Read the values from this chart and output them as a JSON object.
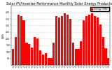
{
  "title": "Solar PV/Inverter Performance Monthly Solar Energy Production",
  "ylabel": "kWh",
  "bar_color": "#ff0000",
  "bg_color": "#ffffff",
  "plot_bg": "#ffffff",
  "grid_color": "#aaaaaa",
  "categories": [
    "Jan\n'08",
    "Feb\n'08",
    "Mar\n'08",
    "Apr\n'08",
    "May\n'08",
    "Jun\n'08",
    "Jul\n'08",
    "Aug\n'08",
    "Sep\n'08",
    "Oct\n'08",
    "Nov\n'08",
    "Dec\n'08",
    "Jan\n'09",
    "Feb\n'09",
    "Mar\n'09",
    "Apr\n'09",
    "May\n'09",
    "Jun\n'09",
    "Jul\n'09",
    "Aug\n'09",
    "Sep\n'09",
    "Oct\n'09",
    "Nov\n'09",
    "Dec\n'09",
    "Jan\n'10",
    "Feb\n'10",
    "Mar\n'10",
    "Apr\n'10",
    "May\n'10",
    "Jun\n'10",
    "Jul\n'10",
    "Aug\n'10",
    "Sep\n'10",
    "Oct\n'10",
    "Nov\n'10",
    "Dec\n'10"
  ],
  "values": [
    120,
    210,
    380,
    370,
    340,
    170,
    160,
    130,
    210,
    200,
    110,
    80,
    90,
    55,
    55,
    170,
    370,
    360,
    370,
    390,
    380,
    350,
    170,
    120,
    120,
    180,
    340,
    370,
    380,
    390,
    370,
    360,
    310,
    210,
    125,
    55
  ],
  "ylim": [
    0,
    450
  ],
  "yticks": [
    50,
    100,
    150,
    200,
    250,
    300,
    350,
    400
  ],
  "legend_label": "Energy (kWh)",
  "legend_color": "#ff0000",
  "title_fontsize": 3.5,
  "tick_fontsize": 2.2,
  "label_fontsize": 2.5,
  "legend_fontsize": 2.2
}
